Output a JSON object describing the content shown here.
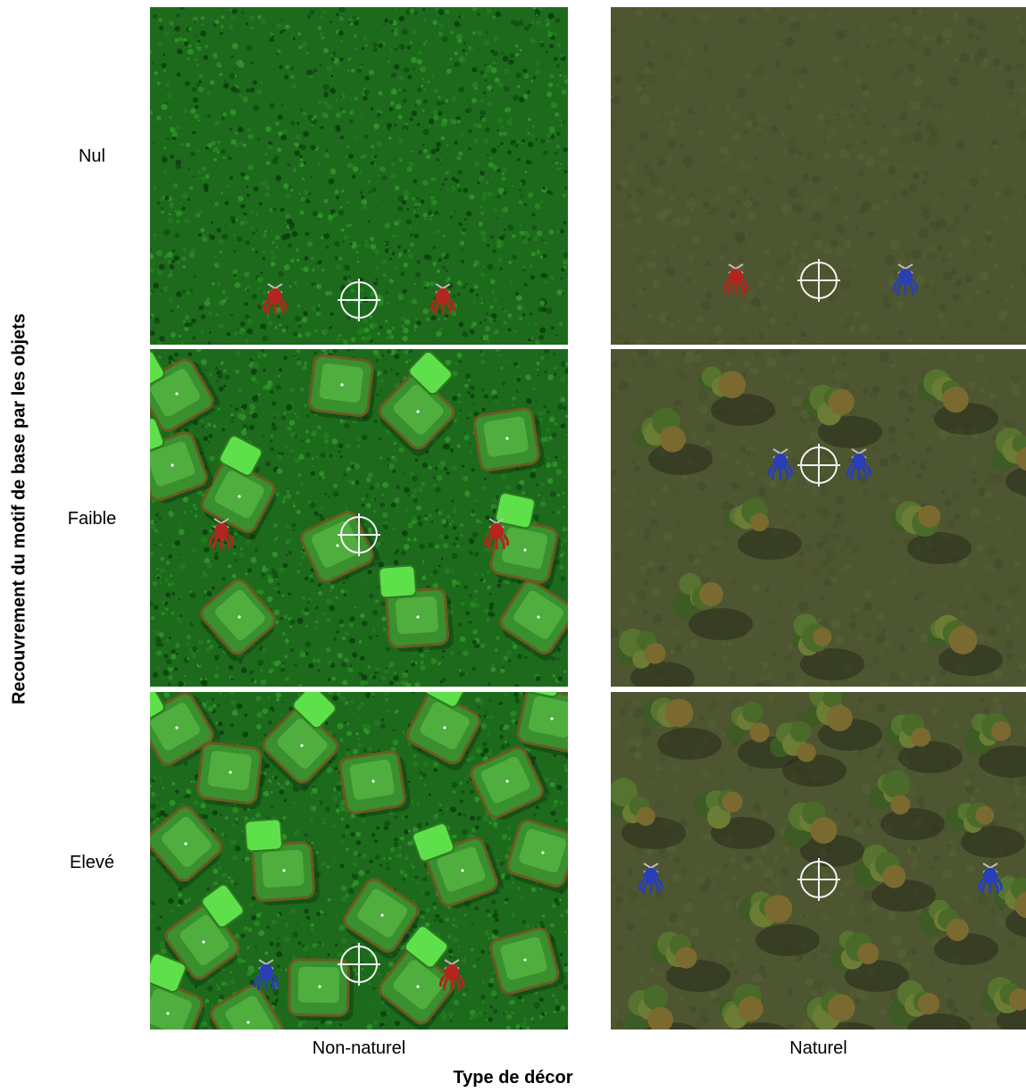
{
  "axes": {
    "y_title": "Recouvrement du motif de base par les objets",
    "x_title": "Type de décor"
  },
  "rows": [
    {
      "label": "Nul"
    },
    {
      "label": "Faible"
    },
    {
      "label": "Elevé"
    }
  ],
  "columns": [
    {
      "label": "Non-naturel"
    },
    {
      "label": "Naturel"
    }
  ],
  "panels": [
    {
      "row": "Nul",
      "column": "Non-naturel",
      "background": "#1f6b1e",
      "objects": "none",
      "creatures": [
        "red",
        "red"
      ]
    },
    {
      "row": "Nul",
      "column": "Naturel",
      "background": "#4e5731",
      "objects": "none",
      "creatures": [
        "red",
        "blue"
      ]
    },
    {
      "row": "Faible",
      "column": "Non-naturel",
      "background": "#1f6b1e",
      "objects": "green-cubes",
      "creatures": [
        "red",
        "red"
      ]
    },
    {
      "row": "Faible",
      "column": "Naturel",
      "background": "#4e5731",
      "objects": "trees",
      "creatures": [
        "blue",
        "blue"
      ]
    },
    {
      "row": "Elevé",
      "column": "Non-naturel",
      "background": "#1f6b1e",
      "objects": "green-cubes",
      "creatures": [
        "blue",
        "red"
      ]
    },
    {
      "row": "Elevé",
      "column": "Naturel",
      "background": "#4e5731",
      "objects": "trees",
      "creatures": [
        "blue",
        "blue"
      ]
    }
  ],
  "colors": {
    "red_creature": "#b3261e",
    "blue_creature": "#2a3fb5",
    "crosshair": "#f2f2f2"
  }
}
